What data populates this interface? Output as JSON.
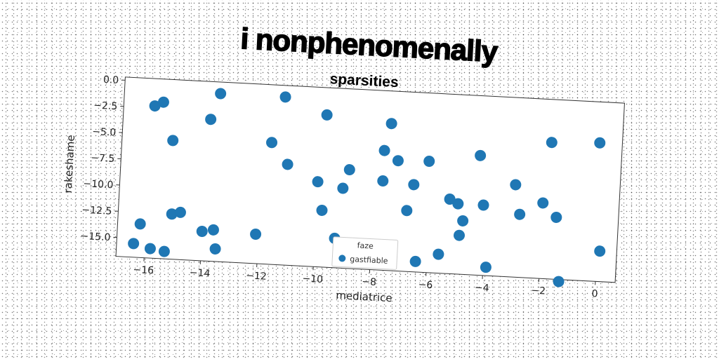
{
  "page_title": "i nonphenomenally",
  "chart_data": {
    "type": "scatter",
    "title": "sparsities",
    "xlabel": "mediatrice",
    "ylabel": "rakeshame",
    "xlim": [
      -17,
      0.7
    ],
    "ylim": [
      -16.8,
      0.3
    ],
    "xticks": [
      -16,
      -14,
      -12,
      -10,
      -8,
      -6,
      -4,
      -2,
      0
    ],
    "yticks": [
      0.0,
      -2.5,
      -5.0,
      -7.5,
      -10.0,
      -12.5,
      -15.0
    ],
    "xtick_labels": [
      "−16",
      "−14",
      "−12",
      "−10",
      "−8",
      "−6",
      "−4",
      "−2",
      "0"
    ],
    "ytick_labels": [
      "0.0",
      "−2.5",
      "−5.0",
      "−7.5",
      "−10.0",
      "−12.5",
      "−15.0"
    ],
    "grid": false,
    "legend": {
      "placement": "lower-center",
      "title": "faze",
      "entries": [
        {
          "label": "gastfiable",
          "color": "#1f77b4"
        }
      ]
    },
    "series": [
      {
        "name": "gastfiable",
        "color": "#1f77b4",
        "points": [
          [
            -15.9,
            -2.3
          ],
          [
            -15.6,
            -1.9
          ],
          [
            -13.6,
            -0.8
          ],
          [
            -13.9,
            -3.3
          ],
          [
            -15.2,
            -5.5
          ],
          [
            -11.3,
            -0.8
          ],
          [
            -9.8,
            -2.3
          ],
          [
            -7.5,
            -2.8
          ],
          [
            -11.7,
            -5.2
          ],
          [
            -11.1,
            -7.2
          ],
          [
            -7.7,
            -5.4
          ],
          [
            -7.2,
            -6.3
          ],
          [
            -6.1,
            -6.2
          ],
          [
            -8.9,
            -7.4
          ],
          [
            -10.0,
            -8.7
          ],
          [
            -9.1,
            -9.2
          ],
          [
            -7.7,
            -8.3
          ],
          [
            -6.6,
            -8.5
          ],
          [
            -9.8,
            -11.4
          ],
          [
            -6.8,
            -11.0
          ],
          [
            -5.3,
            -9.7
          ],
          [
            -5.0,
            -10.1
          ],
          [
            -4.8,
            -11.7
          ],
          [
            -4.9,
            -13.1
          ],
          [
            -4.1,
            -10.1
          ],
          [
            -4.3,
            -5.4
          ],
          [
            -3.0,
            -8.0
          ],
          [
            -2.0,
            -9.6
          ],
          [
            -2.8,
            -10.8
          ],
          [
            -1.5,
            -10.9
          ],
          [
            -1.8,
            -3.8
          ],
          [
            -0.1,
            -3.6
          ],
          [
            -16.2,
            -13.6
          ],
          [
            -15.1,
            -12.5
          ],
          [
            -14.8,
            -12.3
          ],
          [
            -14.0,
            -14.0
          ],
          [
            -13.6,
            -13.8
          ],
          [
            -13.5,
            -15.6
          ],
          [
            -12.1,
            -14.0
          ],
          [
            -9.3,
            -14.0
          ],
          [
            -16.4,
            -15.5
          ],
          [
            -15.8,
            -15.9
          ],
          [
            -15.3,
            -16.1
          ],
          [
            -6.4,
            -15.8
          ],
          [
            -5.6,
            -15.0
          ],
          [
            -3.9,
            -16.0
          ],
          [
            -1.3,
            -17.0
          ],
          [
            0.1,
            -13.9
          ]
        ]
      }
    ]
  }
}
